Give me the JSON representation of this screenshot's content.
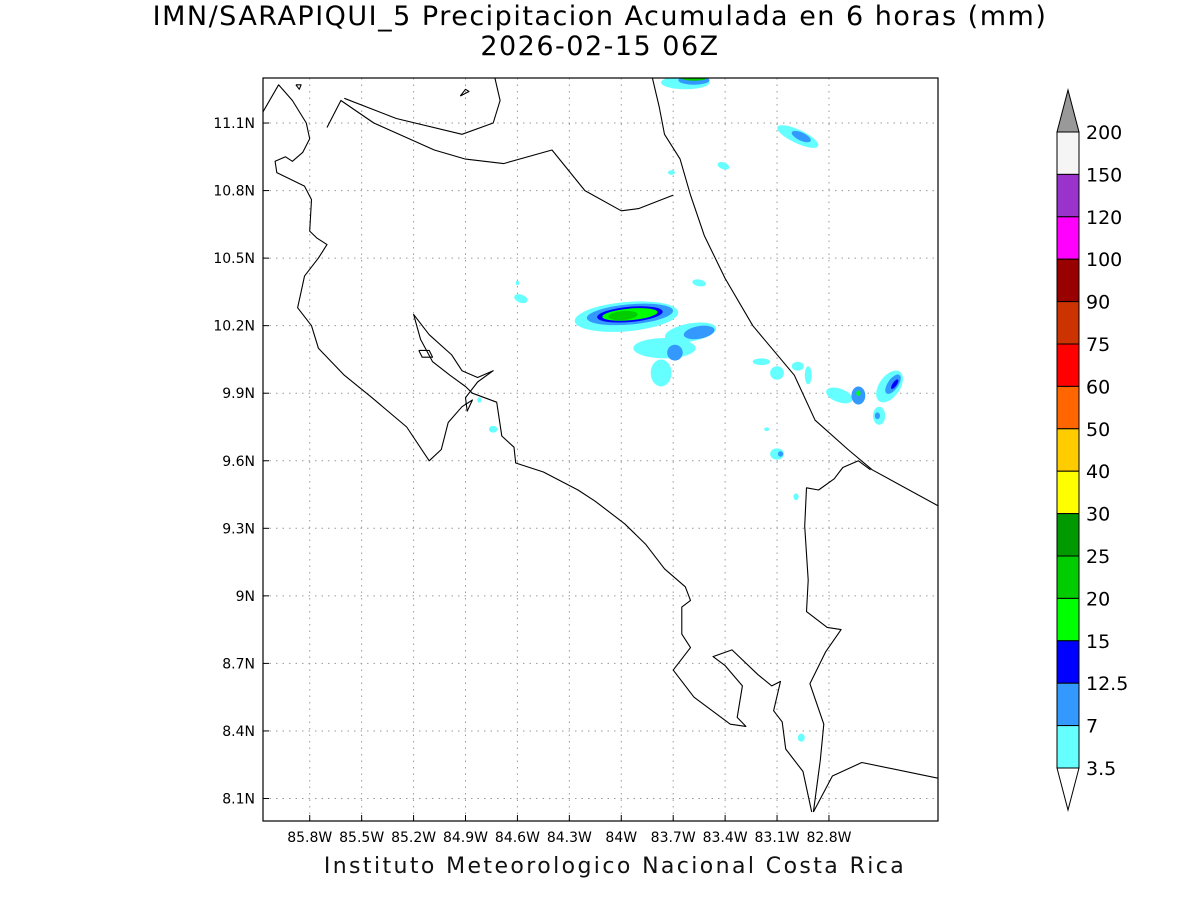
{
  "title": {
    "line1": "IMN/SARAPIQUI_5 Precipitacion Acumulada en 6 horas (mm)",
    "line2": "2026-02-15 06Z"
  },
  "footer": "Instituto Meteorologico Nacional Costa Rica",
  "map": {
    "lon_range": [
      -86.07,
      -82.17
    ],
    "lat_range": [
      8.0,
      11.3
    ],
    "lon_ticks": [
      {
        "value": -85.8,
        "label": "85.8W"
      },
      {
        "value": -85.5,
        "label": "85.5W"
      },
      {
        "value": -85.2,
        "label": "85.2W"
      },
      {
        "value": -84.9,
        "label": "84.9W"
      },
      {
        "value": -84.6,
        "label": "84.6W"
      },
      {
        "value": -84.3,
        "label": "84.3W"
      },
      {
        "value": -84.0,
        "label": "84W"
      },
      {
        "value": -83.7,
        "label": "83.7W"
      },
      {
        "value": -83.4,
        "label": "83.4W"
      },
      {
        "value": -83.1,
        "label": "83.1W"
      },
      {
        "value": -82.8,
        "label": "82.8W"
      }
    ],
    "lat_ticks": [
      {
        "value": 11.1,
        "label": "11.1N"
      },
      {
        "value": 10.8,
        "label": "10.8N"
      },
      {
        "value": 10.5,
        "label": "10.5N"
      },
      {
        "value": 10.2,
        "label": "10.2N"
      },
      {
        "value": 9.9,
        "label": "9.9N"
      },
      {
        "value": 9.6,
        "label": "9.6N"
      },
      {
        "value": 9.3,
        "label": "9.3N"
      },
      {
        "value": 9.0,
        "label": "9N"
      },
      {
        "value": 8.7,
        "label": "8.7N"
      },
      {
        "value": 8.4,
        "label": "8.4N"
      },
      {
        "value": 8.1,
        "label": "8.1N"
      }
    ],
    "gridlines": true,
    "coastlines": {
      "pacific_coast": [
        [
          -86.07,
          11.15
        ],
        [
          -85.98,
          11.27
        ],
        [
          -85.9,
          11.2
        ],
        [
          -85.82,
          11.1
        ],
        [
          -85.8,
          11.03
        ],
        [
          -85.84,
          10.97
        ],
        [
          -85.9,
          10.93
        ],
        [
          -85.94,
          10.95
        ],
        [
          -86.0,
          10.93
        ],
        [
          -85.99,
          10.88
        ],
        [
          -85.83,
          10.82
        ],
        [
          -85.79,
          10.76
        ],
        [
          -85.8,
          10.62
        ],
        [
          -85.76,
          10.59
        ],
        [
          -85.7,
          10.56
        ],
        [
          -85.75,
          10.5
        ],
        [
          -85.83,
          10.42
        ],
        [
          -85.85,
          10.35
        ],
        [
          -85.87,
          10.28
        ],
        [
          -85.79,
          10.2
        ],
        [
          -85.75,
          10.1
        ],
        [
          -85.6,
          9.98
        ],
        [
          -85.44,
          9.88
        ],
        [
          -85.24,
          9.75
        ],
        [
          -85.11,
          9.6
        ],
        [
          -85.04,
          9.65
        ],
        [
          -85.0,
          9.77
        ],
        [
          -84.92,
          9.84
        ],
        [
          -84.86,
          9.87
        ],
        [
          -84.89,
          9.82
        ],
        [
          -84.9,
          9.88
        ],
        [
          -84.83,
          9.95
        ],
        [
          -84.74,
          10.0
        ],
        [
          -84.83,
          9.97
        ],
        [
          -84.92,
          10.0
        ],
        [
          -84.98,
          10.07
        ],
        [
          -85.11,
          10.16
        ],
        [
          -85.2,
          10.25
        ],
        [
          -85.16,
          10.14
        ],
        [
          -85.09,
          10.04
        ],
        [
          -84.99,
          9.98
        ],
        [
          -84.9,
          9.93
        ],
        [
          -84.86,
          9.9
        ],
        [
          -84.72,
          9.86
        ],
        [
          -84.69,
          9.71
        ],
        [
          -84.62,
          9.66
        ],
        [
          -84.61,
          9.59
        ],
        [
          -84.45,
          9.55
        ],
        [
          -84.25,
          9.47
        ],
        [
          -84.15,
          9.42
        ],
        [
          -83.98,
          9.32
        ],
        [
          -83.86,
          9.23
        ],
        [
          -83.75,
          9.12
        ],
        [
          -83.63,
          9.04
        ],
        [
          -83.6,
          8.98
        ],
        [
          -83.65,
          8.95
        ],
        [
          -83.65,
          8.83
        ],
        [
          -83.6,
          8.77
        ],
        [
          -83.7,
          8.67
        ],
        [
          -83.58,
          8.55
        ],
        [
          -83.37,
          8.43
        ],
        [
          -83.28,
          8.42
        ],
        [
          -83.33,
          8.46
        ],
        [
          -83.3,
          8.6
        ],
        [
          -83.4,
          8.69
        ],
        [
          -83.47,
          8.73
        ],
        [
          -83.36,
          8.76
        ],
        [
          -83.21,
          8.65
        ],
        [
          -83.13,
          8.6
        ],
        [
          -83.08,
          8.62
        ],
        [
          -83.12,
          8.49
        ],
        [
          -83.07,
          8.44
        ],
        [
          -83.05,
          8.32
        ],
        [
          -82.95,
          8.22
        ],
        [
          -82.9,
          8.04
        ]
      ],
      "caribbean_coast": [
        [
          -83.82,
          11.3
        ],
        [
          -83.78,
          11.17
        ],
        [
          -83.75,
          11.05
        ],
        [
          -83.66,
          10.94
        ],
        [
          -83.6,
          10.78
        ],
        [
          -83.52,
          10.6
        ],
        [
          -83.4,
          10.41
        ],
        [
          -83.24,
          10.2
        ],
        [
          -83.0,
          9.98
        ],
        [
          -82.88,
          9.78
        ],
        [
          -82.69,
          9.65
        ],
        [
          -82.55,
          9.56
        ],
        [
          -82.17,
          9.4
        ]
      ],
      "nicaragua_border": [
        [
          -85.7,
          11.08
        ],
        [
          -85.62,
          11.2
        ],
        [
          -85.43,
          11.1
        ],
        [
          -85.08,
          10.98
        ],
        [
          -84.9,
          10.94
        ],
        [
          -84.68,
          10.92
        ],
        [
          -84.4,
          10.98
        ],
        [
          -84.21,
          10.8
        ],
        [
          -84.0,
          10.71
        ],
        [
          -83.9,
          10.72
        ],
        [
          -83.7,
          10.78
        ]
      ],
      "lake_nicaragua_south": [
        [
          -85.6,
          11.21
        ],
        [
          -85.3,
          11.12
        ],
        [
          -84.92,
          11.05
        ],
        [
          -84.74,
          11.1
        ],
        [
          -84.7,
          11.2
        ],
        [
          -84.73,
          11.3
        ]
      ],
      "panama_border": [
        [
          -82.56,
          9.56
        ],
        [
          -82.63,
          9.6
        ],
        [
          -82.72,
          9.57
        ],
        [
          -82.77,
          9.52
        ],
        [
          -82.86,
          9.47
        ],
        [
          -82.93,
          9.48
        ],
        [
          -82.94,
          9.31
        ],
        [
          -82.92,
          9.07
        ],
        [
          -82.93,
          8.93
        ],
        [
          -82.81,
          8.86
        ],
        [
          -82.73,
          8.85
        ],
        [
          -82.82,
          8.75
        ],
        [
          -82.91,
          8.61
        ],
        [
          -82.83,
          8.43
        ],
        [
          -82.85,
          8.27
        ],
        [
          -82.89,
          8.04
        ]
      ],
      "panama_coast": [
        [
          -82.89,
          8.04
        ],
        [
          -82.78,
          8.2
        ],
        [
          -82.61,
          8.26
        ],
        [
          -82.17,
          8.19
        ]
      ],
      "isla_zapatera": [
        [
          -85.88,
          11.27
        ],
        [
          -85.85,
          11.27
        ],
        [
          -85.86,
          11.25
        ],
        [
          -85.88,
          11.27
        ]
      ],
      "lake_island": [
        [
          -84.93,
          11.22
        ],
        [
          -84.9,
          11.25
        ],
        [
          -84.88,
          11.24
        ],
        [
          -84.93,
          11.22
        ]
      ],
      "isla_chira": [
        [
          -85.17,
          10.09
        ],
        [
          -85.11,
          10.09
        ],
        [
          -85.09,
          10.06
        ],
        [
          -85.15,
          10.06
        ],
        [
          -85.17,
          10.09
        ]
      ]
    },
    "precip_cells": [
      {
        "lon": -83.97,
        "lat": 10.24,
        "rx": 0.3,
        "ry": 0.065,
        "rot": 5,
        "mm": 3.5
      },
      {
        "lon": -83.95,
        "lat": 10.25,
        "rx": 0.25,
        "ry": 0.045,
        "rot": 5,
        "mm": 7
      },
      {
        "lon": -83.95,
        "lat": 10.25,
        "rx": 0.19,
        "ry": 0.034,
        "rot": 5,
        "mm": 12.5
      },
      {
        "lon": -83.95,
        "lat": 10.25,
        "rx": 0.16,
        "ry": 0.026,
        "rot": 5,
        "mm": 15
      },
      {
        "lon": -83.99,
        "lat": 10.245,
        "rx": 0.085,
        "ry": 0.02,
        "rot": 5,
        "mm": 20
      },
      {
        "lon": -83.6,
        "lat": 10.17,
        "rx": 0.15,
        "ry": 0.04,
        "rot": 10,
        "mm": 3.5
      },
      {
        "lon": -83.55,
        "lat": 10.17,
        "rx": 0.09,
        "ry": 0.028,
        "rot": 10,
        "mm": 7
      },
      {
        "lon": -83.75,
        "lat": 10.1,
        "rx": 0.18,
        "ry": 0.045,
        "rot": 0,
        "mm": 3.5
      },
      {
        "lon": -83.69,
        "lat": 10.08,
        "rx": 0.045,
        "ry": 0.035,
        "rot": 0,
        "mm": 7
      },
      {
        "lon": -83.77,
        "lat": 9.99,
        "rx": 0.06,
        "ry": 0.06,
        "rot": 0,
        "mm": 3.5
      },
      {
        "lon": -83.55,
        "lat": 10.39,
        "rx": 0.04,
        "ry": 0.015,
        "rot": -10,
        "mm": 3.5
      },
      {
        "lon": -84.58,
        "lat": 10.32,
        "rx": 0.04,
        "ry": 0.018,
        "rot": -20,
        "mm": 3.5
      },
      {
        "lon": -84.6,
        "lat": 10.39,
        "rx": 0.01,
        "ry": 0.01,
        "rot": 0,
        "mm": 3.5
      },
      {
        "lon": -83.19,
        "lat": 10.04,
        "rx": 0.05,
        "ry": 0.015,
        "rot": 0,
        "mm": 3.5
      },
      {
        "lon": -83.1,
        "lat": 9.99,
        "rx": 0.04,
        "ry": 0.03,
        "rot": 0,
        "mm": 3.5
      },
      {
        "lon": -82.98,
        "lat": 10.02,
        "rx": 0.035,
        "ry": 0.02,
        "rot": 0,
        "mm": 3.5
      },
      {
        "lon": -82.92,
        "lat": 9.98,
        "rx": 0.02,
        "ry": 0.04,
        "rot": 0,
        "mm": 3.5
      },
      {
        "lon": -82.74,
        "lat": 9.89,
        "rx": 0.08,
        "ry": 0.03,
        "rot": -20,
        "mm": 3.5
      },
      {
        "lon": -82.63,
        "lat": 9.89,
        "rx": 0.04,
        "ry": 0.04,
        "rot": 0,
        "mm": 7
      },
      {
        "lon": -82.63,
        "lat": 9.9,
        "rx": 0.012,
        "ry": 0.012,
        "rot": 0,
        "mm": 15
      },
      {
        "lon": -82.51,
        "lat": 9.8,
        "rx": 0.035,
        "ry": 0.04,
        "rot": 0,
        "mm": 3.5
      },
      {
        "lon": -82.52,
        "lat": 9.8,
        "rx": 0.015,
        "ry": 0.015,
        "rot": 0,
        "mm": 7
      },
      {
        "lon": -82.45,
        "lat": 9.93,
        "rx": 0.06,
        "ry": 0.08,
        "rot": -35,
        "mm": 3.5
      },
      {
        "lon": -82.43,
        "lat": 9.94,
        "rx": 0.03,
        "ry": 0.05,
        "rot": -35,
        "mm": 7
      },
      {
        "lon": -82.42,
        "lat": 9.94,
        "rx": 0.012,
        "ry": 0.025,
        "rot": -35,
        "mm": 12.5
      },
      {
        "lon": -83.1,
        "lat": 9.63,
        "rx": 0.04,
        "ry": 0.025,
        "rot": 0,
        "mm": 3.5
      },
      {
        "lon": -83.08,
        "lat": 9.63,
        "rx": 0.015,
        "ry": 0.012,
        "rot": 0,
        "mm": 7
      },
      {
        "lon": -83.16,
        "lat": 9.74,
        "rx": 0.015,
        "ry": 0.008,
        "rot": 0,
        "mm": 3.5
      },
      {
        "lon": -82.99,
        "lat": 9.44,
        "rx": 0.015,
        "ry": 0.015,
        "rot": 0,
        "mm": 3.5
      },
      {
        "lon": -84.74,
        "lat": 9.74,
        "rx": 0.025,
        "ry": 0.015,
        "rot": 0,
        "mm": 3.5
      },
      {
        "lon": -84.82,
        "lat": 9.87,
        "rx": 0.012,
        "ry": 0.012,
        "rot": 0,
        "mm": 3.5
      },
      {
        "lon": -82.96,
        "lat": 8.37,
        "rx": 0.02,
        "ry": 0.018,
        "rot": 0,
        "mm": 3.5
      },
      {
        "lon": -83.63,
        "lat": 11.28,
        "rx": 0.14,
        "ry": 0.03,
        "rot": 0,
        "mm": 3.5
      },
      {
        "lon": -83.58,
        "lat": 11.29,
        "rx": 0.09,
        "ry": 0.02,
        "rot": 0,
        "mm": 7
      },
      {
        "lon": -83.58,
        "lat": 11.3,
        "rx": 0.075,
        "ry": 0.012,
        "rot": 0,
        "mm": 20
      },
      {
        "lon": -82.98,
        "lat": 11.04,
        "rx": 0.13,
        "ry": 0.03,
        "rot": -25,
        "mm": 3.5
      },
      {
        "lon": -82.96,
        "lat": 11.04,
        "rx": 0.06,
        "ry": 0.018,
        "rot": -25,
        "mm": 7
      },
      {
        "lon": -83.41,
        "lat": 10.91,
        "rx": 0.035,
        "ry": 0.015,
        "rot": -20,
        "mm": 3.5
      },
      {
        "lon": -83.71,
        "lat": 10.88,
        "rx": 0.02,
        "ry": 0.01,
        "rot": 0,
        "mm": 3.5
      }
    ]
  },
  "colorbar": {
    "levels": [
      {
        "label": "200",
        "color": "#f5f5f5"
      },
      {
        "label": "150",
        "color": "#9933cc"
      },
      {
        "label": "120",
        "color": "#ff00ff"
      },
      {
        "label": "100",
        "color": "#990000"
      },
      {
        "label": "90",
        "color": "#cc3300"
      },
      {
        "label": "75",
        "color": "#ff0000"
      },
      {
        "label": "60",
        "color": "#ff6600"
      },
      {
        "label": "50",
        "color": "#ffcc00"
      },
      {
        "label": "40",
        "color": "#ffff00"
      },
      {
        "label": "30",
        "color": "#009900"
      },
      {
        "label": "25",
        "color": "#00cc00"
      },
      {
        "label": "20",
        "color": "#00ff00"
      },
      {
        "label": "15",
        "color": "#0000ff"
      },
      {
        "label": "12.5",
        "color": "#3399ff"
      },
      {
        "label": "7",
        "color": "#66ffff"
      },
      {
        "label": "3.5",
        "color": "#ffffff"
      }
    ],
    "over_color": "#999999",
    "under_color": "#ffffff"
  }
}
